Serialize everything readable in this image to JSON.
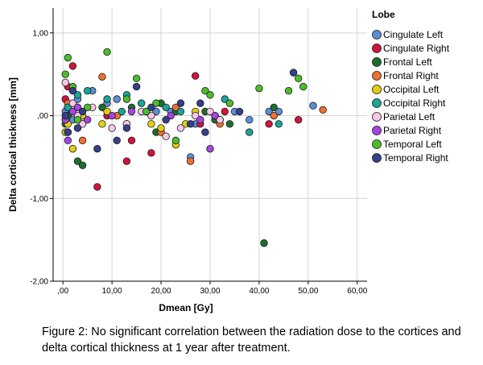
{
  "caption": "Figure 2: No significant correlation between the radiation dose to the cortices and delta cortical thickness at 1 year after treatment.",
  "chart_data": {
    "type": "scatter",
    "title": "",
    "xlabel": "Dmean [Gy]",
    "ylabel": "Delta cortical thickness [mm]",
    "xlim": [
      -2,
      62
    ],
    "ylim": [
      -2.0,
      1.3
    ],
    "xticks": [
      ",00",
      "10,00",
      "20,00",
      "30,00",
      "40,00",
      "50,00",
      "60,00"
    ],
    "xtick_values": [
      0,
      10,
      20,
      30,
      40,
      50,
      60
    ],
    "yticks": [
      "1,00",
      ",00",
      "-1,00",
      "-2,00"
    ],
    "ytick_values": [
      1,
      0,
      -1,
      -2
    ],
    "grid": "vertical and horizontal major gridlines",
    "legend": {
      "title": "Lobe",
      "placement": "right"
    },
    "series": [
      {
        "name": "Cingulate Left",
        "color": "#5b8fd6",
        "points": [
          [
            0.5,
            0.05
          ],
          [
            1,
            0.1
          ],
          [
            2,
            -0.05
          ],
          [
            3,
            0.2
          ],
          [
            6,
            0.3
          ],
          [
            9,
            0.15
          ],
          [
            11,
            0.2
          ],
          [
            13,
            -0.1
          ],
          [
            19,
            0.05
          ],
          [
            22,
            0.05
          ],
          [
            26,
            -0.5
          ],
          [
            27,
            -0.1
          ],
          [
            35,
            0.05
          ],
          [
            38,
            -0.05
          ],
          [
            42,
            0.05
          ],
          [
            44,
            0.05
          ],
          [
            51,
            0.12
          ]
        ]
      },
      {
        "name": "Cingulate Right",
        "color": "#d0143c",
        "points": [
          [
            0.5,
            0.2
          ],
          [
            1,
            0.35
          ],
          [
            2,
            0.6
          ],
          [
            3,
            0.1
          ],
          [
            4,
            -0.1
          ],
          [
            7,
            -0.86
          ],
          [
            9,
            0.0
          ],
          [
            13,
            -0.55
          ],
          [
            14,
            -0.3
          ],
          [
            18,
            -0.45
          ],
          [
            27,
            0.48
          ],
          [
            28,
            -0.1
          ],
          [
            32,
            -0.05
          ],
          [
            33,
            0.05
          ],
          [
            42,
            -0.1
          ],
          [
            48,
            -0.05
          ]
        ]
      },
      {
        "name": "Frontal Left",
        "color": "#1e6e2d",
        "points": [
          [
            0.5,
            -0.1
          ],
          [
            1,
            0.0
          ],
          [
            2,
            0.05
          ],
          [
            3,
            -0.55
          ],
          [
            4,
            -0.6
          ],
          [
            8,
            0.1
          ],
          [
            14,
            0.1
          ],
          [
            19,
            -0.2
          ],
          [
            20,
            0.15
          ],
          [
            23,
            0.05
          ],
          [
            29,
            0.05
          ],
          [
            31,
            -0.05
          ],
          [
            34,
            -0.1
          ],
          [
            41,
            -1.54
          ],
          [
            43,
            0.1
          ]
        ]
      },
      {
        "name": "Frontal Right",
        "color": "#f07030",
        "points": [
          [
            1,
            0.15
          ],
          [
            4,
            -0.3
          ],
          [
            8,
            0.47
          ],
          [
            11,
            0.0
          ],
          [
            20,
            -0.2
          ],
          [
            23,
            0.1
          ],
          [
            26,
            -0.55
          ],
          [
            32,
            -0.1
          ],
          [
            43,
            0.0
          ],
          [
            53,
            0.07
          ]
        ]
      },
      {
        "name": "Occipital Left",
        "color": "#e3cf10",
        "points": [
          [
            0.5,
            -0.2
          ],
          [
            1,
            -0.1
          ],
          [
            2,
            -0.4
          ],
          [
            3,
            -0.05
          ],
          [
            4,
            0.0
          ],
          [
            8,
            -0.1
          ],
          [
            9,
            0.05
          ],
          [
            13,
            -0.1
          ],
          [
            18,
            -0.1
          ],
          [
            20,
            -0.15
          ],
          [
            23,
            -0.35
          ],
          [
            25,
            -0.1
          ],
          [
            27,
            0.05
          ],
          [
            31,
            0.0
          ]
        ]
      },
      {
        "name": "Occipital Right",
        "color": "#1aa598",
        "points": [
          [
            0.5,
            -0.05
          ],
          [
            1,
            0.1
          ],
          [
            3,
            0.25
          ],
          [
            5,
            0.3
          ],
          [
            9,
            0.2
          ],
          [
            12,
            0.05
          ],
          [
            13,
            0.25
          ],
          [
            16,
            0.15
          ],
          [
            21,
            0.1
          ],
          [
            24,
            0.05
          ],
          [
            33,
            0.2
          ],
          [
            38,
            -0.2
          ],
          [
            44,
            -0.1
          ]
        ]
      },
      {
        "name": "Parietal Left",
        "color": "#f6c8e8",
        "points": [
          [
            0.5,
            0.4
          ],
          [
            1,
            -0.2
          ],
          [
            2,
            0.15
          ],
          [
            3,
            0.0
          ],
          [
            4,
            -0.1
          ],
          [
            6,
            0.1
          ],
          [
            10,
            -0.15
          ],
          [
            13,
            -0.1
          ],
          [
            16,
            0.05
          ],
          [
            18,
            0.0
          ],
          [
            21,
            -0.25
          ],
          [
            24,
            -0.15
          ],
          [
            27,
            0.0
          ],
          [
            30,
            0.05
          ],
          [
            32,
            -0.05
          ]
        ]
      },
      {
        "name": "Parietal Right",
        "color": "#a545e0",
        "points": [
          [
            0.5,
            -0.05
          ],
          [
            1,
            -0.3
          ],
          [
            2,
            0.05
          ],
          [
            3,
            0.1
          ],
          [
            5,
            -0.05
          ],
          [
            10,
            0.0
          ],
          [
            14,
            0.05
          ],
          [
            17,
            0.05
          ],
          [
            22,
            0.0
          ],
          [
            28,
            -0.05
          ],
          [
            30,
            -0.4
          ],
          [
            31,
            0.0
          ]
        ]
      },
      {
        "name": "Temporal Left",
        "color": "#4bbe2a",
        "points": [
          [
            0.5,
            0.5
          ],
          [
            1,
            0.7
          ],
          [
            2,
            0.35
          ],
          [
            3,
            -0.05
          ],
          [
            5,
            0.1
          ],
          [
            9,
            0.77
          ],
          [
            13,
            0.2
          ],
          [
            15,
            0.45
          ],
          [
            17,
            0.05
          ],
          [
            19,
            0.15
          ],
          [
            23,
            -0.3
          ],
          [
            29,
            0.3
          ],
          [
            30,
            0.25
          ],
          [
            34,
            0.15
          ],
          [
            40,
            0.33
          ],
          [
            46,
            0.3
          ],
          [
            48,
            0.45
          ],
          [
            49,
            0.35
          ]
        ]
      },
      {
        "name": "Temporal Right",
        "color": "#33408a",
        "points": [
          [
            0.5,
            0.0
          ],
          [
            1,
            -0.2
          ],
          [
            2,
            0.3
          ],
          [
            3,
            -0.15
          ],
          [
            4,
            0.05
          ],
          [
            7,
            -0.4
          ],
          [
            11,
            -0.3
          ],
          [
            13,
            -0.15
          ],
          [
            15,
            0.35
          ],
          [
            18,
            0.1
          ],
          [
            21,
            -0.05
          ],
          [
            24,
            0.15
          ],
          [
            26,
            -0.1
          ],
          [
            28,
            0.15
          ],
          [
            29,
            -0.2
          ],
          [
            36,
            0.05
          ],
          [
            47,
            0.52
          ]
        ]
      }
    ]
  }
}
